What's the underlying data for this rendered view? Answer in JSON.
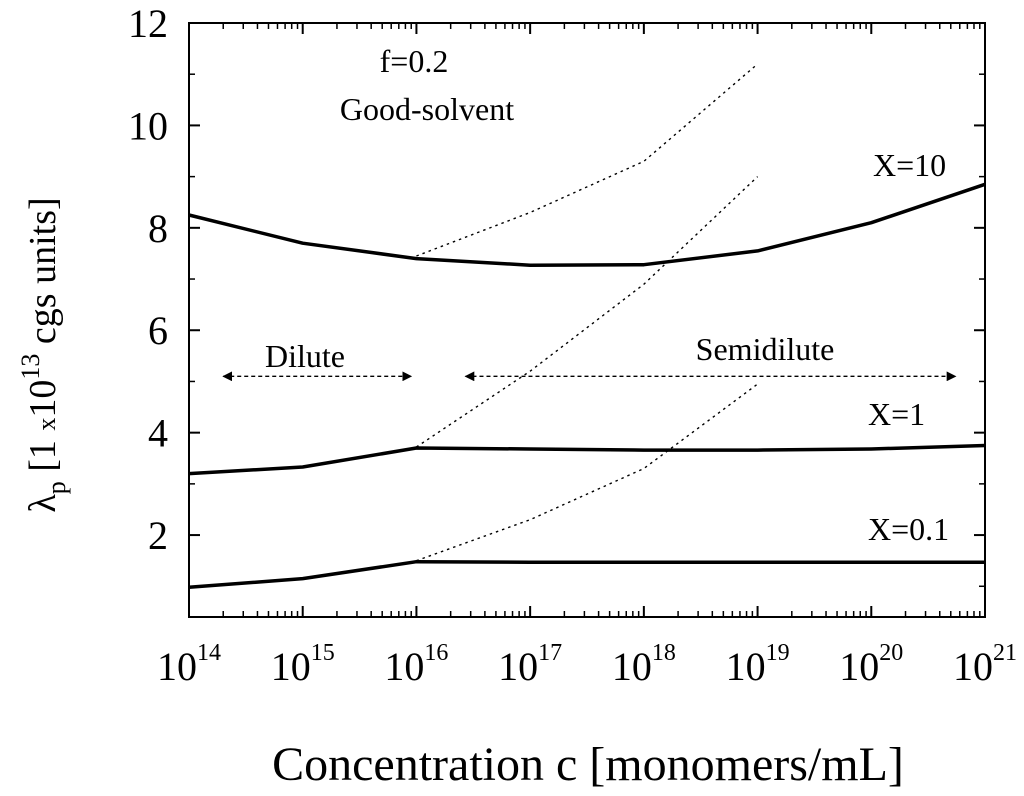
{
  "chart_data": {
    "type": "line",
    "xlabel": "Concentration c [monomers/mL]",
    "ylabel": {
      "symbol": "λ",
      "subscript": "p",
      "prefix": " [1 ",
      "multiply": "x",
      "base": "10",
      "exponent": "13",
      "suffix": " cgs units]"
    },
    "x_scale": "log",
    "xlim": [
      100000000000000.0,
      1e+21
    ],
    "ylim": [
      0.4,
      12
    ],
    "x_ticks": [
      {
        "value": 100000000000000.0,
        "base": "10",
        "exp": "14"
      },
      {
        "value": 1000000000000000.0,
        "base": "10",
        "exp": "15"
      },
      {
        "value": 1e+16,
        "base": "10",
        "exp": "16"
      },
      {
        "value": 1e+17,
        "base": "10",
        "exp": "17"
      },
      {
        "value": 1e+18,
        "base": "10",
        "exp": "18"
      },
      {
        "value": 1e+19,
        "base": "10",
        "exp": "19"
      },
      {
        "value": 1e+20,
        "base": "10",
        "exp": "20"
      },
      {
        "value": 1e+21,
        "base": "10",
        "exp": "21"
      }
    ],
    "y_ticks": [
      {
        "value": 2,
        "label": "2"
      },
      {
        "value": 4,
        "label": "4"
      },
      {
        "value": 6,
        "label": "6"
      },
      {
        "value": 8,
        "label": "8"
      },
      {
        "value": 10,
        "label": "10"
      },
      {
        "value": 12,
        "label": "12"
      }
    ],
    "series": [
      {
        "style": "solid",
        "points": [
          [
            100000000000000.0,
            8.25
          ],
          [
            1000000000000000.0,
            7.7
          ],
          [
            1e+16,
            7.4
          ],
          [
            1e+17,
            7.27
          ],
          [
            1e+18,
            7.28
          ],
          [
            1e+19,
            7.55
          ],
          [
            1e+20,
            8.1
          ],
          [
            1e+21,
            8.85
          ]
        ]
      },
      {
        "style": "solid",
        "points": [
          [
            100000000000000.0,
            3.2
          ],
          [
            1000000000000000.0,
            3.33
          ],
          [
            1e+16,
            3.7
          ],
          [
            1e+17,
            3.68
          ],
          [
            1e+18,
            3.66
          ],
          [
            1e+19,
            3.66
          ],
          [
            1e+20,
            3.68
          ],
          [
            1e+21,
            3.75
          ]
        ]
      },
      {
        "style": "solid",
        "points": [
          [
            100000000000000.0,
            0.98
          ],
          [
            1000000000000000.0,
            1.15
          ],
          [
            1e+16,
            1.48
          ],
          [
            1e+17,
            1.47
          ],
          [
            1e+18,
            1.47
          ],
          [
            1e+19,
            1.47
          ],
          [
            1e+20,
            1.47
          ],
          [
            1e+21,
            1.47
          ]
        ]
      },
      {
        "style": "dotted",
        "points": [
          [
            1e+16,
            7.45
          ],
          [
            1e+17,
            8.3
          ],
          [
            1e+18,
            9.3
          ],
          [
            1e+19,
            11.2
          ]
        ]
      },
      {
        "style": "dotted",
        "points": [
          [
            1e+16,
            3.72
          ],
          [
            1e+17,
            5.2
          ],
          [
            1e+18,
            6.9
          ],
          [
            1e+19,
            9.0
          ]
        ]
      },
      {
        "style": "dotted",
        "points": [
          [
            1e+16,
            1.5
          ],
          [
            1e+17,
            2.3
          ],
          [
            1e+18,
            3.3
          ],
          [
            1e+19,
            4.95
          ]
        ]
      }
    ],
    "annotations": {
      "f_label": "f=0.2",
      "solvent_label": "Good-solvent",
      "x10_label": "X=10",
      "x1_label": "X=1",
      "x01_label": "X=0.1",
      "dilute_label": "Dilute",
      "semidilute_label": "Semidilute"
    },
    "regime_arrows": [
      {
        "from": 200000000000000.0,
        "to": 9000000000000000.0,
        "y": 5.1
      },
      {
        "from": 2.7e+16,
        "to": 5.5e+20,
        "y": 5.1
      }
    ]
  }
}
